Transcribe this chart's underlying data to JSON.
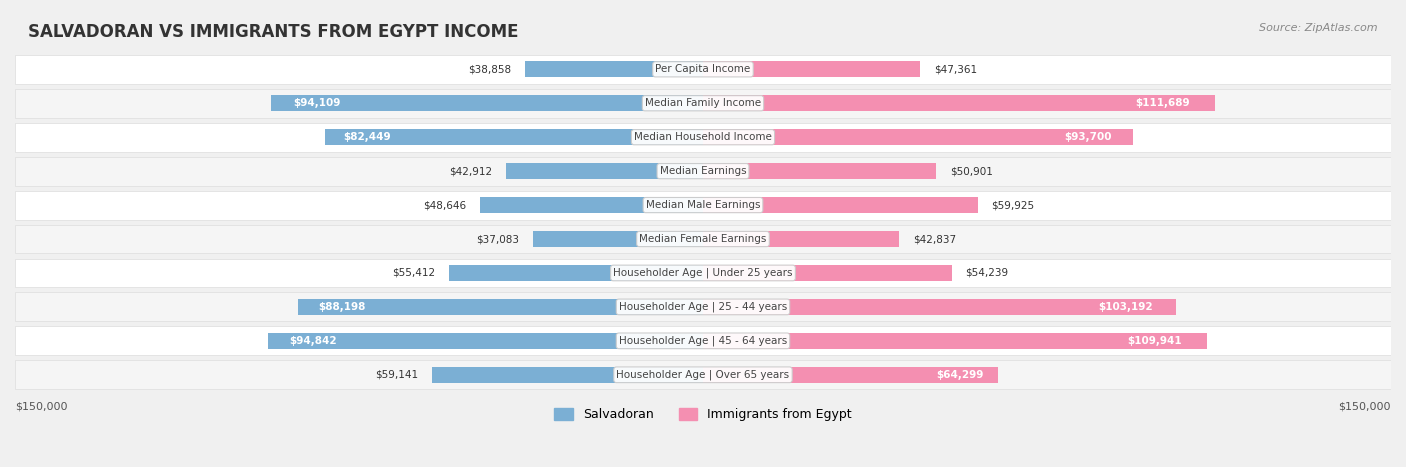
{
  "title": "SALVADORAN VS IMMIGRANTS FROM EGYPT INCOME",
  "source": "Source: ZipAtlas.com",
  "categories": [
    "Per Capita Income",
    "Median Family Income",
    "Median Household Income",
    "Median Earnings",
    "Median Male Earnings",
    "Median Female Earnings",
    "Householder Age | Under 25 years",
    "Householder Age | 25 - 44 years",
    "Householder Age | 45 - 64 years",
    "Householder Age | Over 65 years"
  ],
  "salvadoran_values": [
    38858,
    94109,
    82449,
    42912,
    48646,
    37083,
    55412,
    88198,
    94842,
    59141
  ],
  "egypt_values": [
    47361,
    111689,
    93700,
    50901,
    59925,
    42837,
    54239,
    103192,
    109941,
    64299
  ],
  "salvadoran_labels": [
    "$38,858",
    "$94,109",
    "$82,449",
    "$42,912",
    "$48,646",
    "$37,083",
    "$55,412",
    "$88,198",
    "$94,842",
    "$59,141"
  ],
  "egypt_labels": [
    "$47,361",
    "$111,689",
    "$93,700",
    "$50,901",
    "$59,925",
    "$42,837",
    "$54,239",
    "$103,192",
    "$109,941",
    "$64,299"
  ],
  "salvadoran_color": "#7bafd4",
  "egypt_color": "#f48fb1",
  "salvadoran_color_dark": "#6b9fc4",
  "egypt_color_dark": "#e47fa1",
  "max_value": 150000,
  "legend_salvadoran": "Salvadoran",
  "legend_egypt": "Immigrants from Egypt",
  "left_axis_label": "$150,000",
  "right_axis_label": "$150,000",
  "background_color": "#f5f5f5",
  "row_bg_color": "#ffffff",
  "row_alt_bg_color": "#f0f0f0"
}
